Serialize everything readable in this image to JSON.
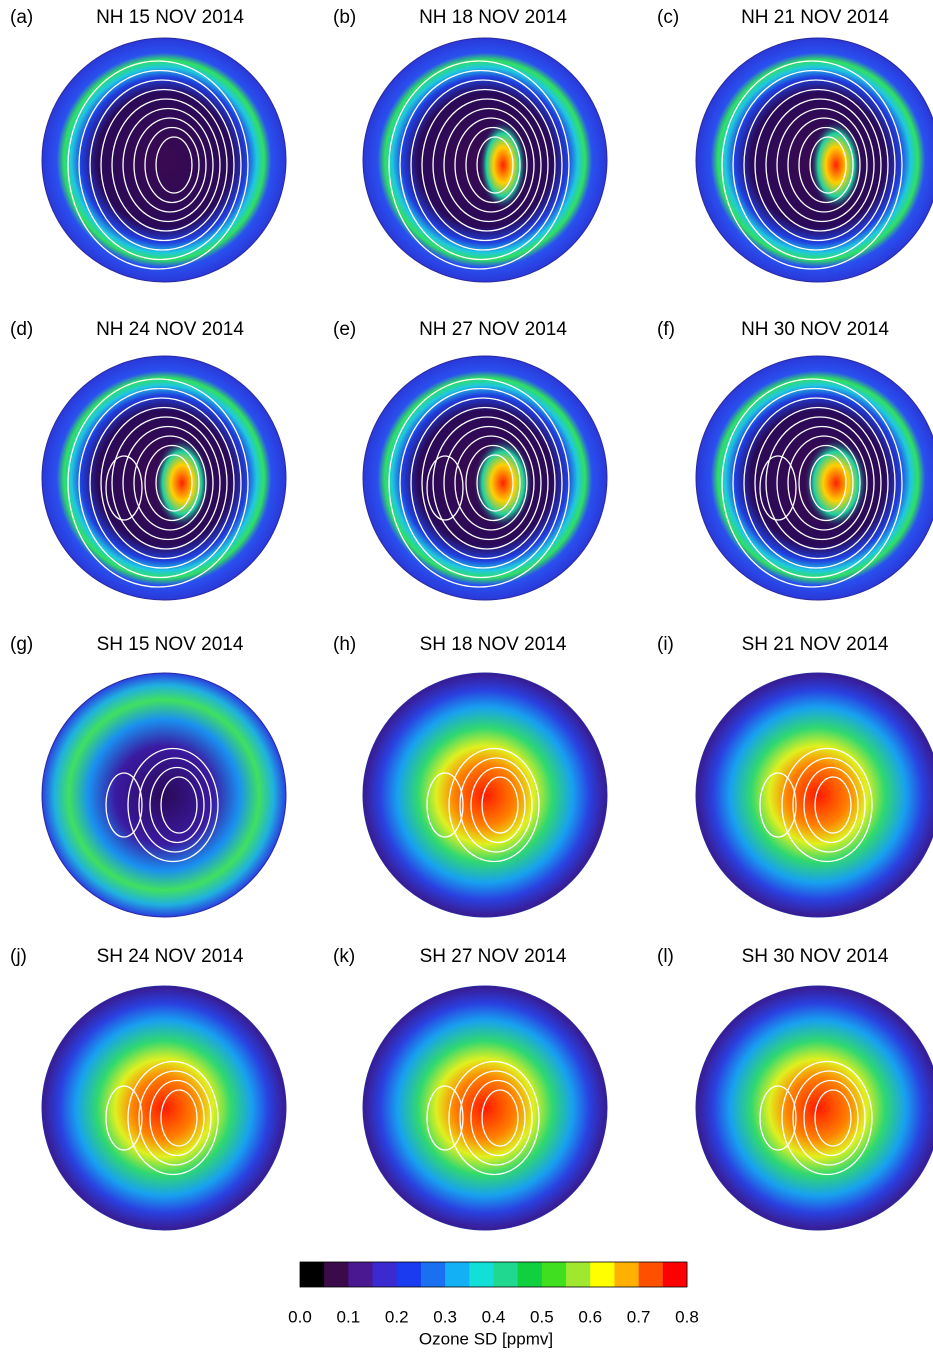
{
  "panels": [
    {
      "label": "(a)",
      "title": "NH 15 NOV 2014"
    },
    {
      "label": "(b)",
      "title": "NH 18 NOV 2014"
    },
    {
      "label": "(c)",
      "title": "NH 21 NOV 2014"
    },
    {
      "label": "(d)",
      "title": "NH 24 NOV 2014"
    },
    {
      "label": "(e)",
      "title": "NH 27 NOV 2014"
    },
    {
      "label": "(f)",
      "title": "NH 30 NOV 2014"
    },
    {
      "label": "(g)",
      "title": "SH 15 NOV 2014"
    },
    {
      "label": "(h)",
      "title": "SH 18 NOV 2014"
    },
    {
      "label": "(i)",
      "title": "SH 21 NOV 2014"
    },
    {
      "label": "(j)",
      "title": "SH 24 NOV 2014"
    },
    {
      "label": "(k)",
      "title": "SH 27 NOV 2014"
    },
    {
      "label": "(l)",
      "title": "SH 30 NOV 2014"
    }
  ],
  "colorbar": {
    "label": "Ozone SD [ppmv]",
    "lim": [
      0,
      0.8
    ],
    "ticks": [
      {
        "value": 0,
        "label": "0.0"
      },
      0.1,
      0.2,
      0.3,
      0.4,
      0.5,
      0.6,
      0.7,
      0.8
    ],
    "colors": [
      "#000000",
      "#3a0a4a",
      "#4a1890",
      "#3a2ad0",
      "#1a3cf0",
      "#1a70f0",
      "#14b0f5",
      "#12e0d8",
      "#20d890",
      "#10d040",
      "#40e020",
      "#a0e830",
      "#ffff00",
      "#ffb000",
      "#ff5000",
      "#ff0000"
    ]
  }
}
